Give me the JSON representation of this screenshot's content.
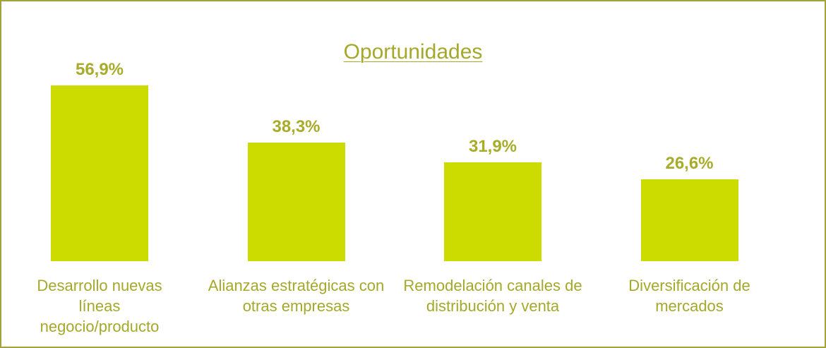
{
  "chart_data": {
    "type": "bar",
    "title": "Oportunidades",
    "categories": [
      "Desarrollo nuevas líneas negocio/producto",
      "Alianzas estratégicas con otras empresas",
      "Remodelación canales de distribución y venta",
      "Diversificación de mercados"
    ],
    "values": [
      56.9,
      38.3,
      31.9,
      26.6
    ],
    "value_labels": [
      "56,9%",
      "38,3%",
      "31,9%",
      "26,6%"
    ],
    "color": "#cddc00"
  }
}
